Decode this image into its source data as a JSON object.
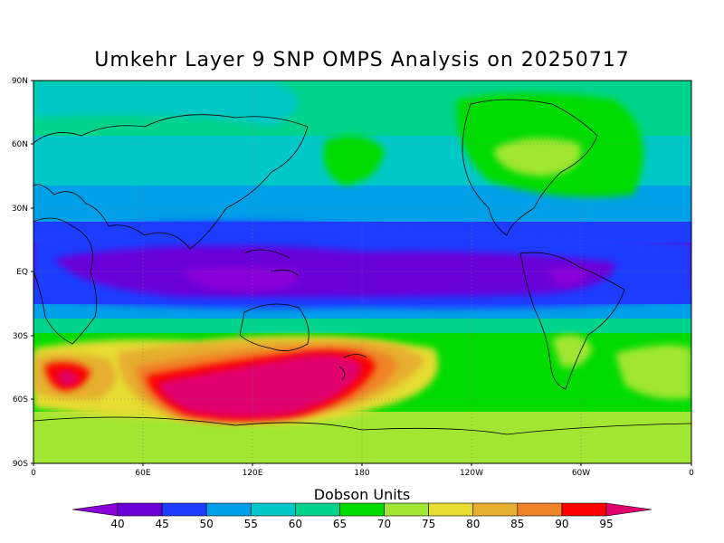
{
  "title": "Umkehr Layer 9 SNP OMPS Analysis on 20250717",
  "map": {
    "lat_ticks": [
      "90N",
      "60N",
      "30N",
      "EQ",
      "30S",
      "60S",
      "90S"
    ],
    "lon_ticks": [
      "0",
      "60E",
      "120E",
      "180",
      "120W",
      "60W",
      "0"
    ]
  },
  "colorbar": {
    "title": "Dobson Units",
    "levels": [
      40,
      45,
      50,
      55,
      60,
      65,
      70,
      75,
      80,
      85,
      90,
      95
    ],
    "colors": [
      "#8a00d8",
      "#6a00d8",
      "#1e3cff",
      "#00a0e8",
      "#00c8c8",
      "#00d48c",
      "#00dc00",
      "#a0e632",
      "#e6dc32",
      "#e6af2d",
      "#f08228",
      "#fa0000",
      "#e0006e"
    ]
  },
  "chart_data": {
    "type": "heatmap",
    "title": "Umkehr Layer 9 SNP OMPS Analysis on 20250717",
    "units": "Dobson Units",
    "x_range": [
      0,
      360
    ],
    "y_range": [
      -90,
      90
    ],
    "features": [
      {
        "region": "equatorial band (10S-10N)",
        "range_DU": [
          40,
          55
        ]
      },
      {
        "region": "Southern Hemisphere mid-latitudes 40S-65S near 60E-170E",
        "range_DU": [
          90,
          95
        ]
      },
      {
        "region": "north polar region",
        "range_DU": [
          60,
          75
        ]
      }
    ]
  }
}
